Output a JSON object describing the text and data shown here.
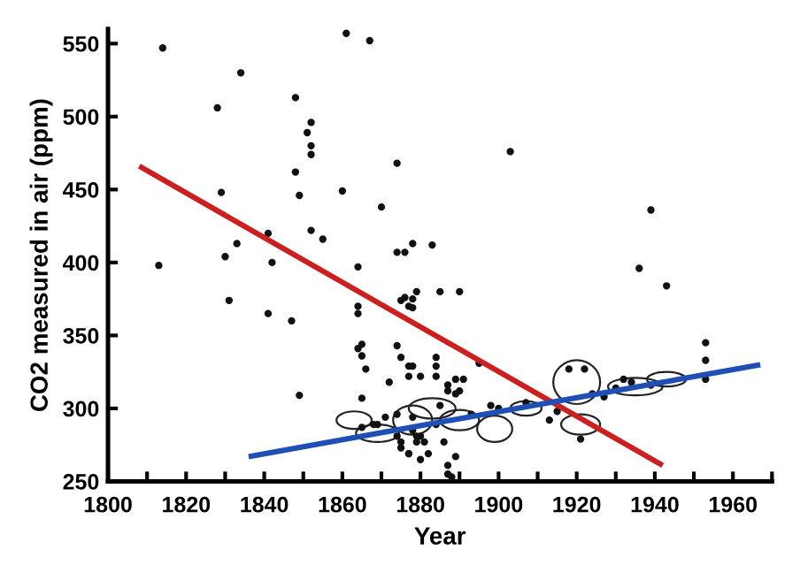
{
  "chart_data": {
    "type": "scatter",
    "xlabel": "Year",
    "ylabel": "CO2 measured in air (ppm)",
    "xlim": [
      1800,
      1970
    ],
    "ylim": [
      250,
      560
    ],
    "xticks": [
      1800,
      {
        "value": 1810,
        "label": null
      },
      1820,
      {
        "value": 1830,
        "label": null
      },
      1840,
      {
        "value": 1850,
        "label": null
      },
      1860,
      {
        "value": 1870,
        "label": null
      },
      1880,
      {
        "value": 1890,
        "label": null
      },
      1900,
      {
        "value": 1910,
        "label": null
      },
      1920,
      {
        "value": 1930,
        "label": null
      },
      1940,
      {
        "value": 1950,
        "label": null
      },
      1960,
      {
        "value": 1970,
        "label": null
      }
    ],
    "yticks": [
      250,
      300,
      350,
      400,
      450,
      500,
      550
    ],
    "grid": false,
    "series": [
      {
        "marker": "circle",
        "color": "#111111",
        "x": [
          1814,
          1813,
          1834,
          1828,
          1829,
          1830,
          1833,
          1841,
          1842,
          1848,
          1848,
          1849,
          1852,
          1851,
          1852,
          1852,
          1852,
          1855,
          1861,
          1867,
          1860,
          1864,
          1870,
          1874,
          1874,
          1876,
          1878,
          1883,
          1903,
          1939,
          1936,
          1831,
          1841,
          1847,
          1849,
          1864,
          1864,
          1865,
          1864,
          1865,
          1866,
          1865,
          1872,
          1943,
          1953,
          1953,
          1953,
          1918,
          1922,
          1890,
          1885,
          1876,
          1878,
          1877,
          1878,
          1874,
          1875,
          1877,
          1878,
          1880,
          1877,
          1884,
          1884,
          1884,
          1887,
          1889,
          1891,
          1890,
          1889,
          1887,
          1885,
          1895,
          1869,
          1871,
          1874,
          1875,
          1877,
          1879,
          1880,
          1881,
          1882,
          1880,
          1878,
          1884,
          1886,
          1887,
          1887,
          1888,
          1889,
          1893,
          1898,
          1900,
          1907,
          1913,
          1915,
          1921,
          1924,
          1927,
          1930,
          1932,
          1934,
          1939,
          1879,
          1875,
          1875,
          1877,
          1879,
          1874,
          1878,
          1865,
          1868
        ],
        "values": [
          547,
          398,
          530,
          506,
          448,
          404,
          413,
          420,
          400,
          462,
          513,
          446,
          496,
          489,
          480,
          474,
          422,
          416,
          557,
          552,
          449,
          397,
          438,
          468,
          407,
          407,
          413,
          412,
          476,
          436,
          396,
          374,
          365,
          360,
          309,
          370,
          365,
          344,
          341,
          336,
          327,
          307,
          318,
          384,
          345,
          333,
          320,
          327,
          327,
          380,
          380,
          376,
          375,
          370,
          369,
          343,
          335,
          329,
          329,
          322,
          322,
          335,
          329,
          322,
          316,
          320,
          320,
          312,
          310,
          312,
          302,
          331,
          289,
          294,
          281,
          273,
          269,
          277,
          281,
          277,
          269,
          265,
          285,
          289,
          277,
          261,
          255,
          253,
          267,
          296,
          302,
          300,
          304,
          292,
          298,
          279,
          310,
          308,
          314,
          320,
          318,
          316,
          380,
          374,
          277,
          269,
          281,
          296,
          294,
          287,
          289
        ]
      },
      {
        "type": "line",
        "color": "#cc1f1f",
        "x": [
          1808,
          1942
        ],
        "values": [
          466,
          261
        ]
      },
      {
        "type": "line",
        "color": "#1f4fb5",
        "x": [
          1836,
          1967
        ],
        "values": [
          267,
          330
        ]
      }
    ]
  }
}
